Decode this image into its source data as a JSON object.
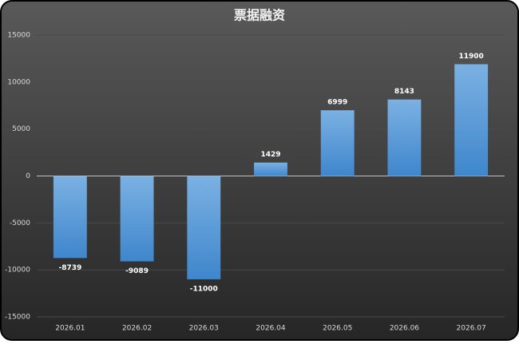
{
  "chart_data": {
    "type": "bar",
    "title": "票据融资",
    "categories": [
      "2026.01",
      "2026.02",
      "2026.03",
      "2026.04",
      "2026.05",
      "2026.06",
      "2026.07"
    ],
    "values": [
      -8739,
      -9089,
      -11000,
      1429,
      6999,
      8143,
      11900
    ],
    "color": "#5b9bd5",
    "ylim": [
      -15000,
      15000
    ],
    "yticks": [
      -15000,
      -10000,
      -5000,
      0,
      5000,
      10000,
      15000
    ],
    "grid": true
  }
}
